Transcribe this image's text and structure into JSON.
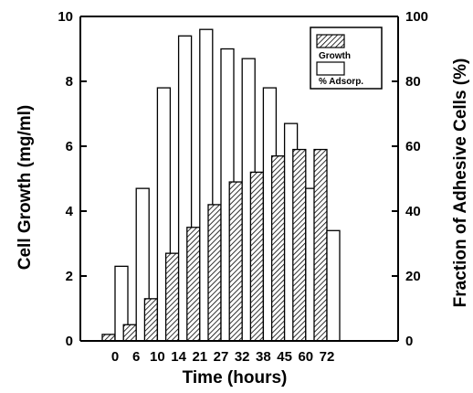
{
  "chart_data": {
    "type": "bar",
    "categories": [
      "0",
      "6",
      "10",
      "14",
      "21",
      "27",
      "32",
      "38",
      "45",
      "60",
      "72"
    ],
    "xlabel": "Time (hours)",
    "ylabel": "Cell Growth  (mg/ml)",
    "y2label": "Fraction of Adhesive Cells (%)",
    "ylim": [
      0,
      10
    ],
    "y2lim": [
      0,
      100
    ],
    "yticks": [
      "0",
      "2",
      "4",
      "6",
      "8",
      "10"
    ],
    "y2ticks": [
      "0",
      "20",
      "40",
      "60",
      "80",
      "100"
    ],
    "grid": false,
    "legend_position": "top-right",
    "series": [
      {
        "name": "Growth",
        "axis": "left",
        "fill": "hatched",
        "values": [
          0.2,
          0.5,
          1.3,
          2.7,
          3.5,
          4.2,
          4.9,
          5.2,
          5.7,
          5.9,
          5.9
        ]
      },
      {
        "name": "% Adsorp.",
        "axis": "right",
        "fill": "white",
        "values": [
          23,
          47,
          78,
          94,
          96,
          90,
          87,
          78,
          67,
          47,
          34
        ]
      }
    ]
  }
}
